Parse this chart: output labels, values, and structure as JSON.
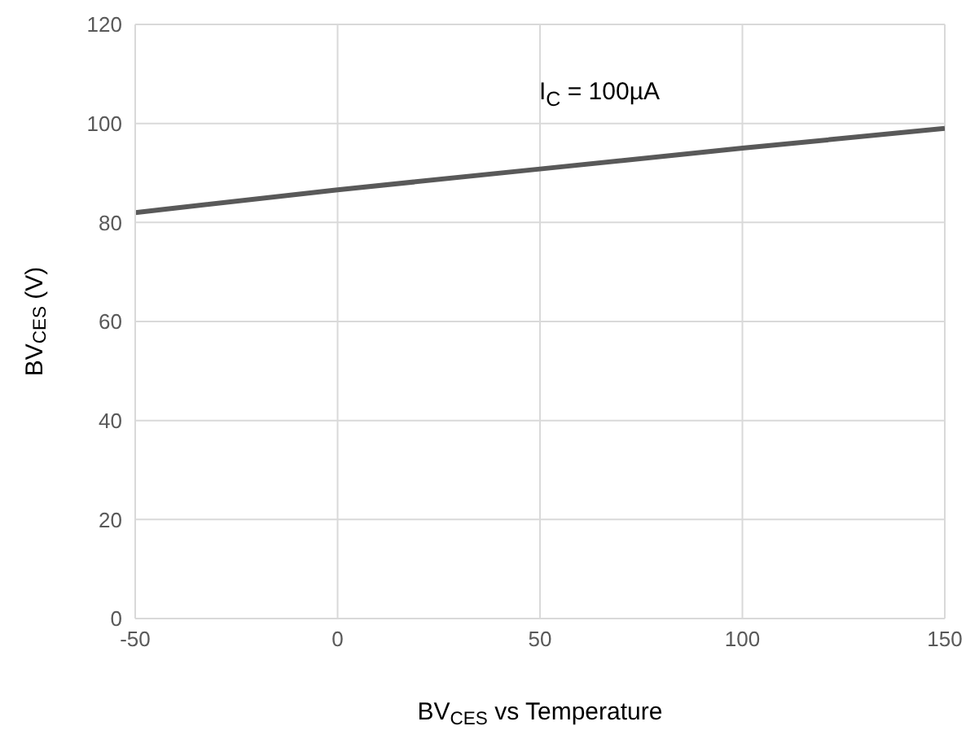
{
  "chart_data": {
    "type": "line",
    "xlabel": "BV$_{CES}$ vs Temperature",
    "ylabel": "BV$_{CES}$  (V)",
    "annotations": [
      "I$_{C}$ = 100µA"
    ],
    "x": [
      -50,
      0,
      50,
      100,
      150
    ],
    "series": [
      {
        "color": "#595959",
        "values": [
          82,
          86.6,
          90.8,
          95,
          99
        ]
      }
    ],
    "xlim": [
      -50,
      150
    ],
    "xticks": [
      -50,
      0,
      50,
      100,
      150
    ],
    "ylim": [
      0,
      120
    ],
    "yticks": [
      0,
      20,
      40,
      60,
      80,
      100,
      120
    ],
    "grid": true,
    "legend": false,
    "marker": "none",
    "line_style": "solid"
  }
}
